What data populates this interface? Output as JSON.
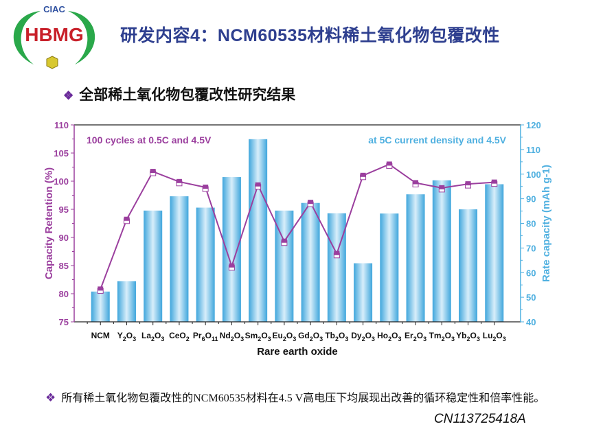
{
  "logo": {
    "top_text": "CIAC",
    "main_text": "HBMG"
  },
  "header": {
    "title": "研发内容4：NCM60535材料稀土氧化物包覆改性"
  },
  "subheading": {
    "bullet": "❖",
    "text": "全部稀土氧化物包覆改性研究结果"
  },
  "footer": {
    "bullet": "❖",
    "text": "所有稀土氧化物包覆改性的NCM60535材料在4.5 V高电压下均展现出改善的循环稳定性和倍率性能。",
    "patent": "CN113725418A"
  },
  "colors": {
    "line": "#9b3f9e",
    "bar": "#4fb0e0",
    "left_axis": "#9b3f9e",
    "right_axis": "#4fb0e0"
  },
  "chart_data": {
    "type": "bar+line",
    "xlabel": "Rare earth oxide",
    "ylabel_left": "Capacity Retention (%)",
    "ylabel_right": "Rate capacity (mAh g-1)",
    "ylim_left": [
      75,
      110
    ],
    "ylim_right": [
      40,
      120
    ],
    "yticks_left": [
      "75",
      "80",
      "85",
      "90",
      "95",
      "100",
      "105",
      "110"
    ],
    "yticks_right": [
      "40",
      "50",
      "60",
      "70",
      "80",
      "90",
      "100",
      "110",
      "120"
    ],
    "annotation_left": "100 cycles at 0.5C and 4.5V",
    "annotation_right": "at 5C current density and 4.5V",
    "categories": [
      "NCM",
      "Y2O3",
      "La2O3",
      "CeO2",
      "Pr6O11",
      "Nd2O3",
      "Sm2O3",
      "Eu2O3",
      "Gd2O3",
      "Tb2O3",
      "Dy2O3",
      "Ho2O3",
      "Er2O3",
      "Tm2O3",
      "Yb2O3",
      "Lu2O3"
    ],
    "series": [
      {
        "name": "Capacity Retention (%)",
        "type": "line",
        "axis": "left",
        "values": [
          80.8,
          93.2,
          101.7,
          99.9,
          98.9,
          84.9,
          99.3,
          89.3,
          96.2,
          87.1,
          101.0,
          103.0,
          99.7,
          98.8,
          99.5,
          99.8
        ]
      },
      {
        "name": "Rate capacity (mAh g-1)",
        "type": "bar",
        "axis": "right",
        "values": [
          52.3,
          56.5,
          85.2,
          91.0,
          86.4,
          98.8,
          114.2,
          85.2,
          88.3,
          84.1,
          63.8,
          84.0,
          91.8,
          97.5,
          85.7,
          95.9
        ]
      }
    ],
    "grid": false
  }
}
